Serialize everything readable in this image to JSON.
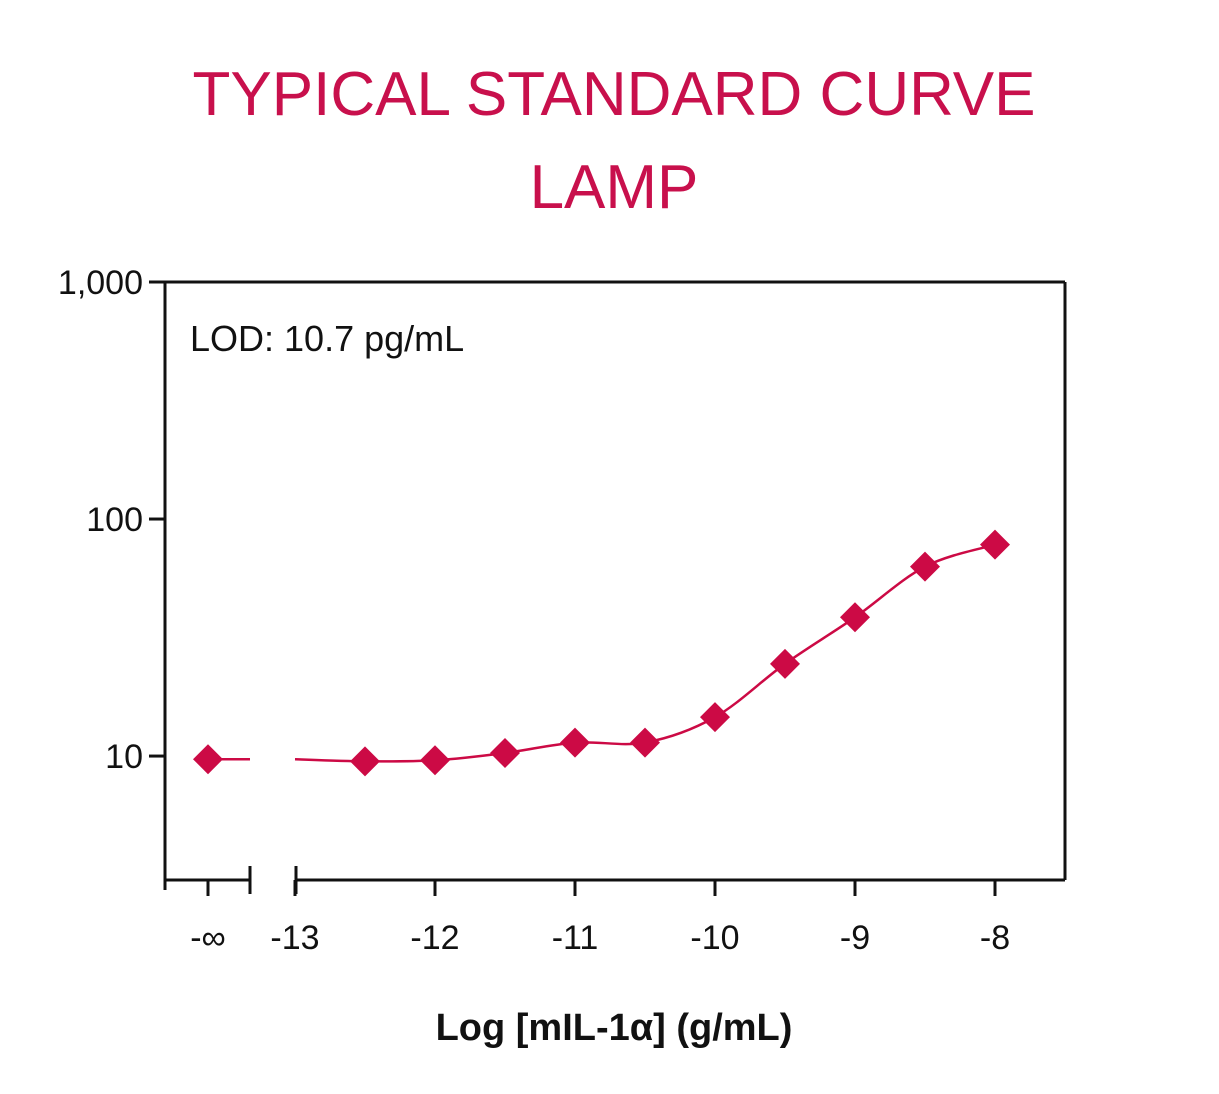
{
  "chart_data": {
    "type": "line",
    "title": [
      "TYPICAL STANDARD CURVE",
      "LAMP"
    ],
    "xlabel": "Log [mIL-1α] (g/mL)",
    "ylabel": "",
    "y_scale": "log",
    "ylim": [
      3.0,
      1000
    ],
    "xlim": [
      -13.5,
      -7.5
    ],
    "y_ticks": [
      {
        "value": 1000,
        "label": "1,000"
      },
      {
        "value": 100,
        "label": "100"
      },
      {
        "value": 10,
        "label": "10"
      }
    ],
    "x_ticks": [
      {
        "value": -13,
        "label": "-13"
      },
      {
        "value": -12,
        "label": "-12"
      },
      {
        "value": -11,
        "label": "-11"
      },
      {
        "value": -10,
        "label": "-10"
      },
      {
        "value": -9,
        "label": "-9"
      },
      {
        "value": -8,
        "label": "-8"
      }
    ],
    "x_break_label": "-∞",
    "zero_point": {
      "x": "-∞",
      "y": 9.7
    },
    "series": [
      {
        "x": [
          -12.5,
          -12.0,
          -11.5,
          -11.0,
          -10.5,
          -10.0,
          -9.5,
          -9.0,
          -8.5,
          -8.0
        ],
        "y": [
          9.5,
          9.6,
          10.3,
          11.4,
          11.4,
          14.6,
          24.5,
          38.5,
          63.0,
          78.0
        ]
      }
    ],
    "annotation": "LOD: 10.7 pg/mL",
    "grid": false,
    "colors": {
      "accent": "#cc0a45",
      "title": "#c8104c",
      "axis": "#111111"
    }
  }
}
